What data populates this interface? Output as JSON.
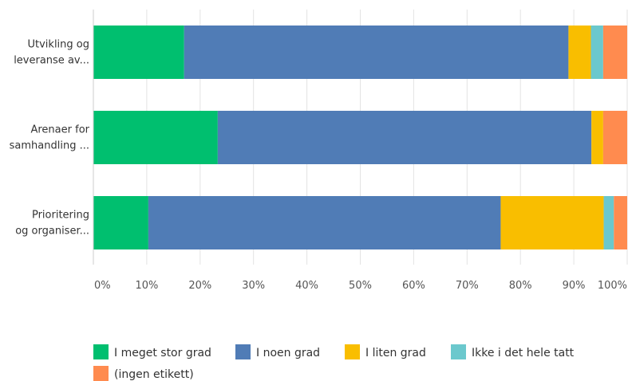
{
  "chart_data": {
    "type": "bar",
    "orientation": "horizontal",
    "stacked": true,
    "categories": [
      [
        "Utvikling og",
        "leveranse av..."
      ],
      [
        "Arenaer for",
        "samhandling ..."
      ],
      [
        "Prioritering",
        "og organiser..."
      ]
    ],
    "series": [
      {
        "name": "I meget stor grad",
        "color": "#00bf6f",
        "values": [
          0.17,
          0.233,
          0.103
        ]
      },
      {
        "name": "I noen grad",
        "color": "#507cb6",
        "values": [
          0.72,
          0.7,
          0.66
        ]
      },
      {
        "name": "I liten grad",
        "color": "#f9be00",
        "values": [
          0.042,
          0.022,
          0.193
        ]
      },
      {
        "name": "Ikke i det hele tatt",
        "color": "#6bc8cd",
        "values": [
          0.023,
          0.0,
          0.019
        ]
      },
      {
        "name": "(ingen etikett)",
        "color": "#ff8b4f",
        "values": [
          0.045,
          0.045,
          0.025
        ]
      }
    ],
    "x_ticks": [
      "0%",
      "10%",
      "20%",
      "30%",
      "40%",
      "50%",
      "60%",
      "70%",
      "80%",
      "90%",
      "100%"
    ],
    "xlim": [
      0,
      1
    ],
    "grid": true,
    "legend_position": "bottom-left"
  }
}
